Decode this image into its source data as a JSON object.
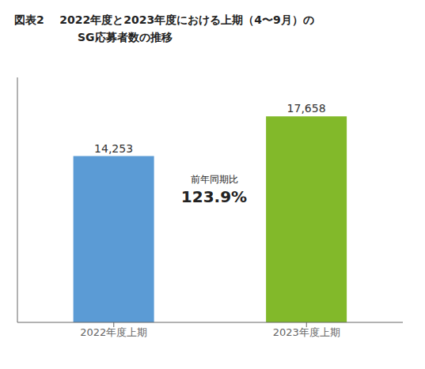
{
  "chart_data": {
    "type": "bar",
    "title": "図表2    2022年度と2023年度における上期（4〜9月）の\nSG応募者数の推移",
    "categories": [
      "2022年度上期",
      "2023年度上期"
    ],
    "values": [
      14253,
      17658
    ],
    "value_labels": [
      "14,253",
      "17,658"
    ],
    "colors": [
      "#5B9BD5",
      "#82B92A"
    ],
    "ylim": [
      0,
      21000
    ],
    "yticks": [],
    "data_labels": true,
    "tick_labels": "x",
    "grid": false,
    "annotations": [
      "前年同期比",
      "123.9%"
    ]
  }
}
